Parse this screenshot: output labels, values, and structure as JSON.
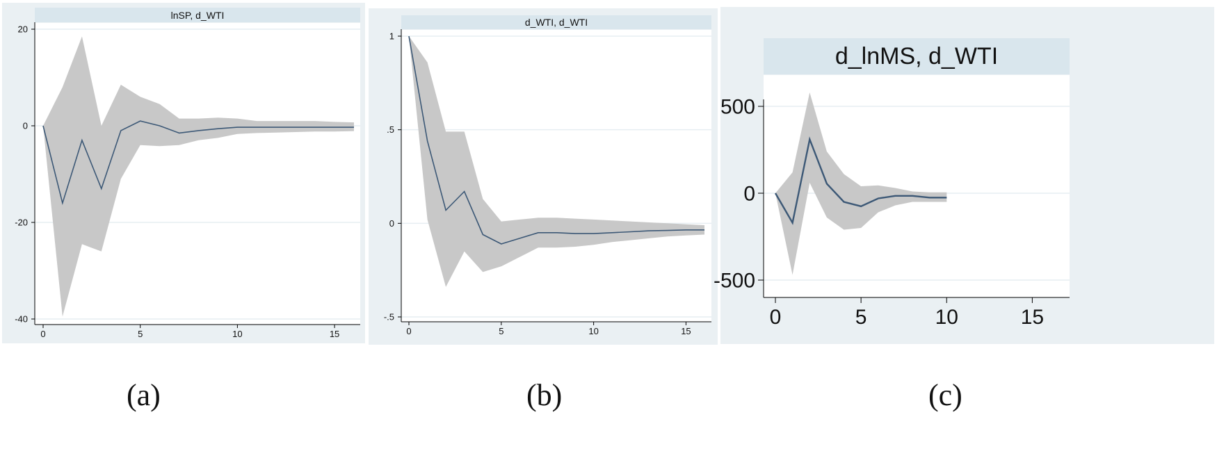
{
  "colors": {
    "band": "#c8c8c8",
    "line": "#3c5876",
    "panel_bg": "#eaf0f3",
    "title_bg": "#d9e6ed",
    "grid": "#e6eef2"
  },
  "captions": [
    "(a)",
    "(b)",
    "(c)"
  ],
  "chart_data": [
    {
      "type": "area",
      "title": "lnSP, d_WTI",
      "xlim": [
        0,
        16
      ],
      "ylim": [
        -40,
        20
      ],
      "xticks": [
        "0",
        "5",
        "10",
        "15"
      ],
      "yticks": [
        "-40",
        "-20",
        "0",
        "20"
      ],
      "grid": true,
      "x": [
        0,
        1,
        2,
        3,
        4,
        5,
        6,
        7,
        8,
        9,
        10,
        11,
        12,
        13,
        14,
        15,
        16
      ],
      "series": [
        {
          "role": "irf",
          "values": [
            0,
            -16,
            -3,
            -13,
            -1,
            1,
            0,
            -1.5,
            -1,
            -0.6,
            -0.3,
            -0.3,
            -0.3,
            -0.3,
            -0.3,
            -0.3,
            -0.3
          ]
        },
        {
          "role": "upper",
          "values": [
            0,
            8,
            18.5,
            0,
            8.5,
            6,
            4.5,
            1.5,
            1.5,
            1.7,
            1.5,
            1,
            1,
            1,
            1,
            0.8,
            0.7
          ]
        },
        {
          "role": "lower",
          "values": [
            0,
            -39.5,
            -24.5,
            -26,
            -11,
            -4,
            -4.2,
            -4,
            -3,
            -2.5,
            -1.7,
            -1.5,
            -1.4,
            -1.3,
            -1.2,
            -1.2,
            -1.1
          ]
        }
      ]
    },
    {
      "type": "area",
      "title": "d_WTI, d_WTI",
      "xlim": [
        0,
        16
      ],
      "ylim": [
        -0.5,
        1
      ],
      "xticks": [
        "0",
        "5",
        "10",
        "15"
      ],
      "yticks": [
        "-.5",
        "0",
        ".5",
        "1"
      ],
      "grid": true,
      "x": [
        0,
        1,
        2,
        3,
        4,
        5,
        6,
        7,
        8,
        9,
        10,
        11,
        12,
        13,
        14,
        15,
        16
      ],
      "series": [
        {
          "role": "irf",
          "values": [
            1,
            0.44,
            0.07,
            0.17,
            -0.06,
            -0.11,
            -0.08,
            -0.05,
            -0.05,
            -0.055,
            -0.055,
            -0.05,
            -0.045,
            -0.04,
            -0.038,
            -0.035,
            -0.035
          ]
        },
        {
          "role": "upper",
          "values": [
            1,
            0.86,
            0.49,
            0.49,
            0.13,
            0.01,
            0.02,
            0.03,
            0.03,
            0.025,
            0.02,
            0.015,
            0.01,
            0.005,
            0,
            -0.005,
            -0.01
          ]
        },
        {
          "role": "lower",
          "values": [
            1,
            0.02,
            -0.34,
            -0.15,
            -0.26,
            -0.23,
            -0.18,
            -0.13,
            -0.13,
            -0.125,
            -0.115,
            -0.1,
            -0.09,
            -0.08,
            -0.07,
            -0.065,
            -0.06
          ]
        }
      ]
    },
    {
      "type": "area",
      "title": "d_lnMS, d_WTI",
      "xlim": [
        0,
        16
      ],
      "ylim": [
        -500,
        500
      ],
      "xticks": [
        "0",
        "5",
        "10",
        "15"
      ],
      "yticks": [
        "-500",
        "0",
        "500"
      ],
      "grid": true,
      "x": [
        0,
        1,
        2,
        3,
        4,
        5,
        6,
        7,
        8,
        9,
        10
      ],
      "series": [
        {
          "role": "irf",
          "values": [
            0,
            -170,
            310,
            55,
            -50,
            -75,
            -30,
            -15,
            -15,
            -25,
            -25
          ]
        },
        {
          "role": "upper",
          "values": [
            0,
            120,
            580,
            240,
            110,
            40,
            45,
            30,
            10,
            5,
            5
          ]
        },
        {
          "role": "lower",
          "values": [
            0,
            -470,
            60,
            -140,
            -210,
            -200,
            -110,
            -70,
            -50,
            -50,
            -50
          ]
        }
      ]
    }
  ]
}
